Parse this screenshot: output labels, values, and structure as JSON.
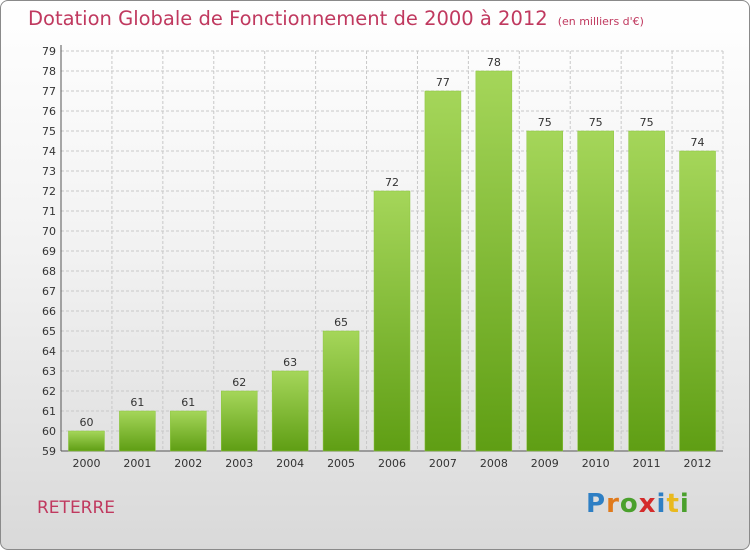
{
  "header": {
    "title": "Dotation Globale de Fonctionnement de 2000 à 2012",
    "unit": "(en milliers d'€)"
  },
  "footer": {
    "commune": "RETERRE",
    "logo": "Proxiti"
  },
  "colors": {
    "title": "#c0395f",
    "bar_light": "#a5d65a",
    "bar_dark": "#5f9e14",
    "grid": "#c8c8c8"
  },
  "chart_data": {
    "type": "bar",
    "title": "Dotation Globale de Fonctionnement de 2000 à 2012",
    "subtitle": "(en milliers d'€)",
    "xlabel": "",
    "ylabel": "",
    "categories": [
      "2000",
      "2001",
      "2002",
      "2003",
      "2004",
      "2005",
      "2006",
      "2007",
      "2008",
      "2009",
      "2010",
      "2011",
      "2012"
    ],
    "values": [
      60,
      61,
      61,
      62,
      63,
      65,
      72,
      77,
      78,
      75,
      75,
      75,
      74
    ],
    "ylim": [
      59,
      79
    ],
    "yticks": [
      59,
      60,
      61,
      62,
      63,
      64,
      65,
      66,
      67,
      68,
      69,
      70,
      71,
      72,
      73,
      74,
      75,
      76,
      77,
      78,
      79
    ],
    "grid": true,
    "data_labels": true
  }
}
